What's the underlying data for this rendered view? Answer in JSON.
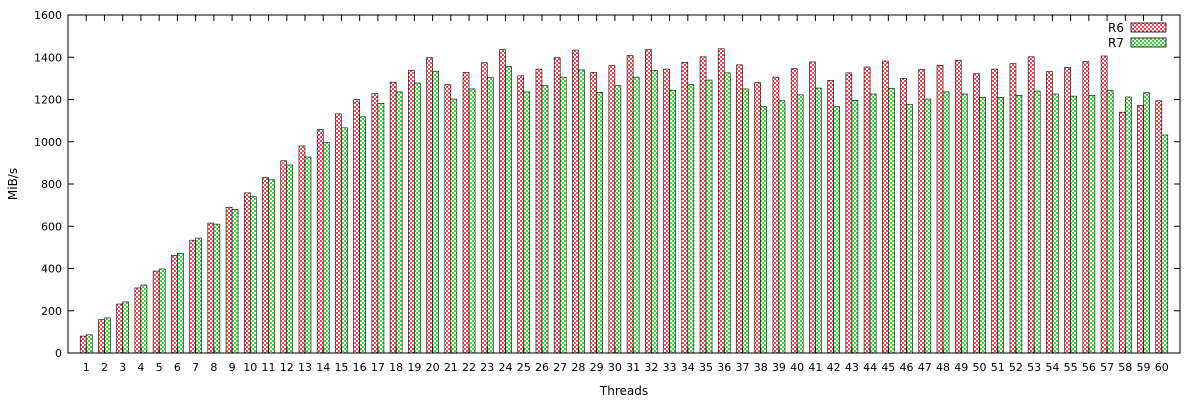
{
  "chart_data": {
    "type": "bar",
    "xlabel": "Threads",
    "ylabel": "MiB/s",
    "ylim": [
      0,
      1600
    ],
    "yticks": [
      0,
      200,
      400,
      600,
      800,
      1000,
      1200,
      1400,
      1600
    ],
    "grid": false,
    "legend_position": "top-right",
    "categories": [
      "1",
      "2",
      "3",
      "4",
      "5",
      "6",
      "7",
      "8",
      "9",
      "10",
      "11",
      "12",
      "13",
      "14",
      "15",
      "16",
      "17",
      "18",
      "19",
      "20",
      "21",
      "22",
      "23",
      "24",
      "25",
      "26",
      "27",
      "28",
      "29",
      "30",
      "31",
      "32",
      "33",
      "34",
      "35",
      "36",
      "37",
      "38",
      "39",
      "40",
      "41",
      "42",
      "43",
      "44",
      "45",
      "46",
      "47",
      "48",
      "49",
      "50",
      "51",
      "52",
      "53",
      "54",
      "55",
      "56",
      "57",
      "58",
      "59",
      "60"
    ],
    "series": [
      {
        "name": "R6",
        "color": "#ff3f4f",
        "pattern": "checker",
        "values": [
          80,
          158,
          232,
          308,
          388,
          462,
          534,
          615,
          690,
          758,
          832,
          910,
          980,
          1058,
          1132,
          1200,
          1228,
          1282,
          1338,
          1398,
          1270,
          1328,
          1374,
          1436,
          1312,
          1344,
          1398,
          1434,
          1328,
          1360,
          1408,
          1436,
          1344,
          1376,
          1402,
          1440,
          1364,
          1280,
          1306,
          1346,
          1378,
          1290,
          1326,
          1354,
          1382,
          1300,
          1342,
          1362,
          1386,
          1322,
          1344,
          1370,
          1402,
          1332,
          1352,
          1380,
          1406,
          1140,
          1172,
          1194
        ]
      },
      {
        "name": "R7",
        "color": "#33dd33",
        "pattern": "checker",
        "values": [
          86,
          166,
          242,
          322,
          398,
          472,
          544,
          610,
          680,
          740,
          820,
          890,
          928,
          996,
          1066,
          1118,
          1182,
          1236,
          1278,
          1334,
          1202,
          1250,
          1304,
          1356,
          1236,
          1266,
          1306,
          1340,
          1234,
          1266,
          1306,
          1338,
          1244,
          1270,
          1292,
          1326,
          1250,
          1166,
          1194,
          1222,
          1254,
          1166,
          1196,
          1226,
          1252,
          1176,
          1202,
          1236,
          1226,
          1210,
          1210,
          1220,
          1240,
          1226,
          1216,
          1220,
          1244,
          1212,
          1232,
          1032
        ]
      }
    ]
  }
}
